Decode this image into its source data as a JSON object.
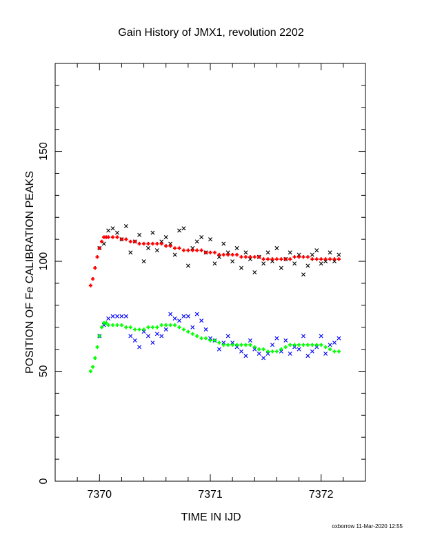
{
  "chart_data": {
    "type": "scatter",
    "title": "Gain History of JMX1, revolution 2202",
    "xlabel": "TIME IN IJD",
    "ylabel": "POSITION OF Fe CALIBRATION PEAKS",
    "xlim": [
      7369.6,
      7372.4
    ],
    "ylim": [
      0,
      190
    ],
    "x_ticks": [
      7370,
      7371,
      7372
    ],
    "y_ticks": [
      0,
      50,
      100,
      150
    ],
    "grid": false,
    "footer": "oxborrow 11-Mar-2020 12:55",
    "series": [
      {
        "color": "#000000",
        "marker": "x",
        "x": [
          7370.0,
          7370.04,
          7370.08,
          7370.12,
          7370.16,
          7370.2,
          7370.24,
          7370.28,
          7370.32,
          7370.36,
          7370.4,
          7370.44,
          7370.48,
          7370.52,
          7370.56,
          7370.6,
          7370.64,
          7370.68,
          7370.72,
          7370.76,
          7370.8,
          7370.84,
          7370.88,
          7370.92,
          7370.96,
          7371.0,
          7371.04,
          7371.08,
          7371.12,
          7371.16,
          7371.2,
          7371.24,
          7371.28,
          7371.32,
          7371.36,
          7371.4,
          7371.44,
          7371.48,
          7371.52,
          7371.56,
          7371.6,
          7371.64,
          7371.68,
          7371.72,
          7371.76,
          7371.8,
          7371.84,
          7371.88,
          7371.92,
          7371.96,
          7372.0,
          7372.04,
          7372.08,
          7372.12,
          7372.16
        ],
        "y": [
          106,
          108,
          114,
          115,
          113,
          110,
          116,
          104,
          109,
          112,
          100,
          106,
          113,
          105,
          109,
          111,
          108,
          103,
          114,
          115,
          98,
          106,
          109,
          111,
          104,
          110,
          99,
          102,
          108,
          104,
          100,
          106,
          97,
          104,
          101,
          95,
          102,
          99,
          104,
          100,
          106,
          97,
          101,
          104,
          99,
          103,
          94,
          98,
          103,
          105,
          99,
          100,
          104,
          100,
          103
        ]
      },
      {
        "color": "#ff0000",
        "marker": "+",
        "x": [
          7369.92,
          7369.94,
          7369.96,
          7369.98,
          7370.0,
          7370.02,
          7370.04,
          7370.06,
          7370.08,
          7370.12,
          7370.16,
          7370.2,
          7370.24,
          7370.28,
          7370.32,
          7370.36,
          7370.4,
          7370.44,
          7370.48,
          7370.52,
          7370.56,
          7370.6,
          7370.64,
          7370.68,
          7370.72,
          7370.76,
          7370.8,
          7370.84,
          7370.88,
          7370.92,
          7370.96,
          7371.0,
          7371.04,
          7371.08,
          7371.12,
          7371.16,
          7371.2,
          7371.24,
          7371.28,
          7371.32,
          7371.36,
          7371.4,
          7371.44,
          7371.48,
          7371.52,
          7371.56,
          7371.6,
          7371.64,
          7371.68,
          7371.72,
          7371.76,
          7371.8,
          7371.84,
          7371.88,
          7371.92,
          7371.96,
          7372.0,
          7372.04,
          7372.08,
          7372.12,
          7372.16
        ],
        "y": [
          89,
          92,
          97,
          102,
          106,
          109,
          111,
          111,
          111,
          111,
          111,
          110,
          110,
          109,
          109,
          108,
          108,
          108,
          108,
          108,
          108,
          107,
          107,
          106,
          106,
          105,
          105,
          105,
          105,
          105,
          104,
          104,
          104,
          103,
          103,
          103,
          103,
          103,
          102,
          102,
          102,
          102,
          102,
          101,
          101,
          101,
          101,
          101,
          101,
          101,
          102,
          102,
          102,
          102,
          101,
          101,
          101,
          101,
          101,
          101,
          101
        ]
      },
      {
        "color": "#0000ff",
        "marker": "x",
        "x": [
          7370.0,
          7370.04,
          7370.08,
          7370.12,
          7370.16,
          7370.2,
          7370.24,
          7370.28,
          7370.32,
          7370.36,
          7370.4,
          7370.44,
          7370.48,
          7370.52,
          7370.56,
          7370.6,
          7370.64,
          7370.68,
          7370.72,
          7370.76,
          7370.8,
          7370.84,
          7370.88,
          7370.92,
          7370.96,
          7371.0,
          7371.04,
          7371.08,
          7371.12,
          7371.16,
          7371.2,
          7371.24,
          7371.28,
          7371.32,
          7371.36,
          7371.4,
          7371.44,
          7371.48,
          7371.52,
          7371.56,
          7371.6,
          7371.64,
          7371.68,
          7371.72,
          7371.76,
          7371.8,
          7371.84,
          7371.88,
          7371.92,
          7371.96,
          7372.0,
          7372.04,
          7372.08,
          7372.12,
          7372.16
        ],
        "y": [
          66,
          71,
          74,
          75,
          75,
          75,
          75,
          66,
          64,
          61,
          68,
          66,
          63,
          67,
          66,
          69,
          76,
          74,
          73,
          75,
          75,
          70,
          76,
          73,
          69,
          65,
          64,
          60,
          63,
          66,
          63,
          61,
          59,
          57,
          64,
          60,
          58,
          56,
          58,
          62,
          65,
          59,
          64,
          58,
          61,
          60,
          66,
          57,
          59,
          61,
          66,
          58,
          62,
          63,
          65
        ]
      },
      {
        "color": "#00ff00",
        "marker": "+",
        "x": [
          7369.92,
          7369.94,
          7369.96,
          7369.98,
          7370.0,
          7370.02,
          7370.04,
          7370.06,
          7370.08,
          7370.12,
          7370.16,
          7370.2,
          7370.24,
          7370.28,
          7370.32,
          7370.36,
          7370.4,
          7370.44,
          7370.48,
          7370.52,
          7370.56,
          7370.6,
          7370.64,
          7370.68,
          7370.72,
          7370.76,
          7370.8,
          7370.84,
          7370.88,
          7370.92,
          7370.96,
          7371.0,
          7371.04,
          7371.08,
          7371.12,
          7371.16,
          7371.2,
          7371.24,
          7371.28,
          7371.32,
          7371.36,
          7371.4,
          7371.44,
          7371.48,
          7371.52,
          7371.56,
          7371.6,
          7371.64,
          7371.68,
          7371.72,
          7371.76,
          7371.8,
          7371.84,
          7371.88,
          7371.92,
          7371.96,
          7372.0,
          7372.04,
          7372.08,
          7372.12,
          7372.16
        ],
        "y": [
          50,
          52,
          56,
          61,
          66,
          70,
          72,
          72,
          71,
          71,
          71,
          71,
          70,
          70,
          69,
          69,
          69,
          70,
          70,
          70,
          71,
          71,
          71,
          71,
          70,
          69,
          68,
          67,
          66,
          65,
          65,
          64,
          64,
          63,
          62,
          62,
          62,
          62,
          62,
          62,
          62,
          61,
          60,
          60,
          59,
          59,
          59,
          60,
          61,
          62,
          62,
          62,
          62,
          62,
          62,
          62,
          62,
          61,
          60,
          59,
          59
        ]
      }
    ]
  }
}
